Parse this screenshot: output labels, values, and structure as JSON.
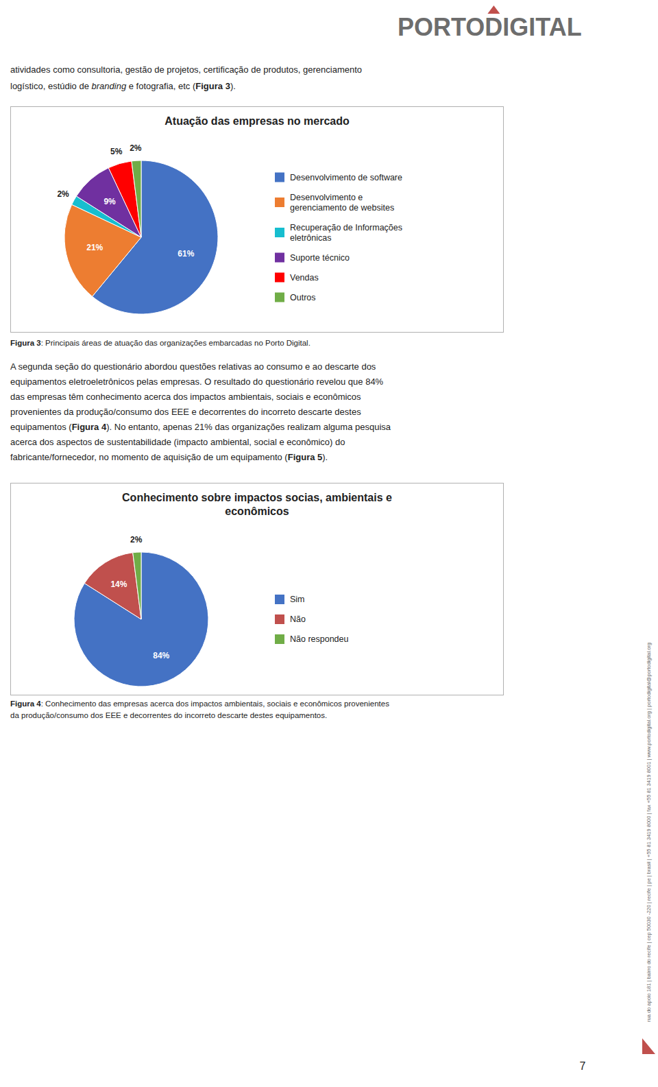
{
  "chart_data": [
    {
      "type": "pie",
      "title": "Atuação das empresas no mercado",
      "categories": [
        "Desenvolvimento de software",
        "Desenvolvimento e\ngerenciamento de websites",
        "Recuperação de Informações\neletrônicas",
        "Suporte técnico",
        "Vendas",
        "Outros"
      ],
      "values": [
        61,
        21,
        2,
        9,
        5,
        2
      ],
      "value_labels": [
        "61%",
        "21%",
        "2%",
        "9%",
        "5%",
        "2%"
      ],
      "colors": [
        "#4472C4",
        "#ED7D31",
        "#17BECF",
        "#7030A0",
        "#FF0000",
        "#70AD47"
      ],
      "data_labels": true,
      "legend": "right"
    },
    {
      "type": "pie",
      "title": "Conhecimento sobre impactos socias, ambientais e\neconômicos",
      "categories": [
        "Sim",
        "Não",
        "Não respondeu"
      ],
      "values": [
        84,
        14,
        2
      ],
      "value_labels": [
        "84%",
        "14%",
        "2%"
      ],
      "colors": [
        "#4472C4",
        "#C0504D",
        "#70AD47"
      ],
      "data_labels": true,
      "legend": "right"
    }
  ],
  "page": {
    "logo": "PORTODIGITAL",
    "intro": [
      [
        {
          "text": "atividades como consultoria, gestão de projetos, certificação de produtos, gerenciamento"
        }
      ],
      [
        {
          "text": "logístico, estúdio de "
        },
        {
          "text": "branding",
          "italic": true
        },
        {
          "text": " e fotografia, etc ("
        },
        {
          "text": "Figura 3",
          "bold": true
        },
        {
          "text": ")."
        }
      ]
    ],
    "caption_1": [
      [
        {
          "text": "Figura 3",
          "bold": true
        },
        {
          "text": ": Principais áreas de atuação das organizações embarcadas no Porto Digital."
        }
      ]
    ],
    "body": [
      [
        {
          "text": "A segunda seção do questionário abordou questões relativas ao consumo e ao descarte dos"
        }
      ],
      [
        {
          "text": "equipamentos eletroeletrônicos pelas empresas. O resultado do questionário revelou que 84%"
        }
      ],
      [
        {
          "text": "das empresas têm conhecimento acerca dos impactos ambientais, sociais e econômicos"
        }
      ],
      [
        {
          "text": "provenientes da produção/consumo dos EEE e decorrentes do incorreto descarte destes"
        }
      ],
      [
        {
          "text": "equipamentos ("
        },
        {
          "text": "Figura 4",
          "bold": true
        },
        {
          "text": "). No entanto, apenas 21% das organizações realizam alguma pesquisa"
        }
      ],
      [
        {
          "text": "acerca dos aspectos de sustentabilidade (impacto ambiental, social e econômico) do"
        }
      ],
      [
        {
          "text": "fabricante/fornecedor, no momento de aquisição de um equipamento ("
        },
        {
          "text": "Figura 5",
          "bold": true
        },
        {
          "text": ")."
        }
      ]
    ],
    "caption_2": [
      [
        {
          "text": "Figura 4",
          "bold": true
        },
        {
          "text": ": Conhecimento das empresas acerca dos impactos ambientais, sociais e econômicos provenientes"
        }
      ],
      [
        {
          "text": "da produção/consumo dos EEE e decorrentes do incorreto descarte destes equipamentos."
        }
      ]
    ],
    "page_number": "7",
    "sidebar": "rua do apoio 181 | bairro do recife | cep 50030 -220 | recife | pe | brasil | +55 81 3419 8000 | fax +55 81 3419 8001 | www.portodigital.org | portodigital@portodigital.org"
  }
}
